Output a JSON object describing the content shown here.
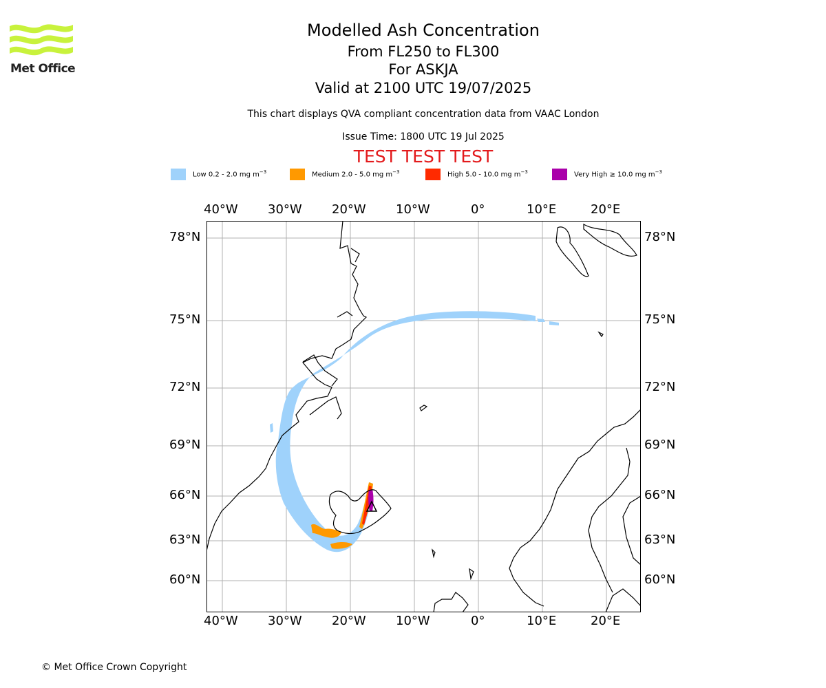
{
  "logo": {
    "text": "Met Office",
    "icon": "met-office-wave-logo",
    "color": "#c8f23c"
  },
  "title": "Modelled Ash Concentration",
  "subtitle_levels": "From FL250 to FL300",
  "subtitle_volcano": "For ASKJA",
  "subtitle_valid": "Valid at 2100 UTC 19/07/2025",
  "note": "This chart displays QVA compliant concentration data from VAAC London",
  "issue_time": "Issue Time: 1800 UTC 19 Jul 2025",
  "test_banner": "TEST TEST TEST",
  "test_color": "#e31a1c",
  "legend": [
    {
      "label": "Low 0.2 - 2.0 mg m",
      "unit_exp": "−3",
      "color": "#9fd2fb"
    },
    {
      "label": "Medium 2.0 - 5.0 mg m",
      "unit_exp": "−3",
      "color": "#ff9900"
    },
    {
      "label": "High 5.0 - 10.0 mg m",
      "unit_exp": "−3",
      "color": "#ff2a00"
    },
    {
      "label": "Very High  ≥  10.0 mg m",
      "unit_exp": "−3",
      "color": "#aa00aa"
    }
  ],
  "map": {
    "lon_labels": [
      "40°W",
      "30°W",
      "20°W",
      "10°W",
      "0°",
      "10°E",
      "20°E"
    ],
    "lat_labels": [
      "78°N",
      "75°N",
      "72°N",
      "69°N",
      "66°N",
      "63°N",
      "60°N"
    ],
    "volcano_marker": "triangle-icon",
    "grid": true
  },
  "copyright": "© Met Office Crown Copyright"
}
